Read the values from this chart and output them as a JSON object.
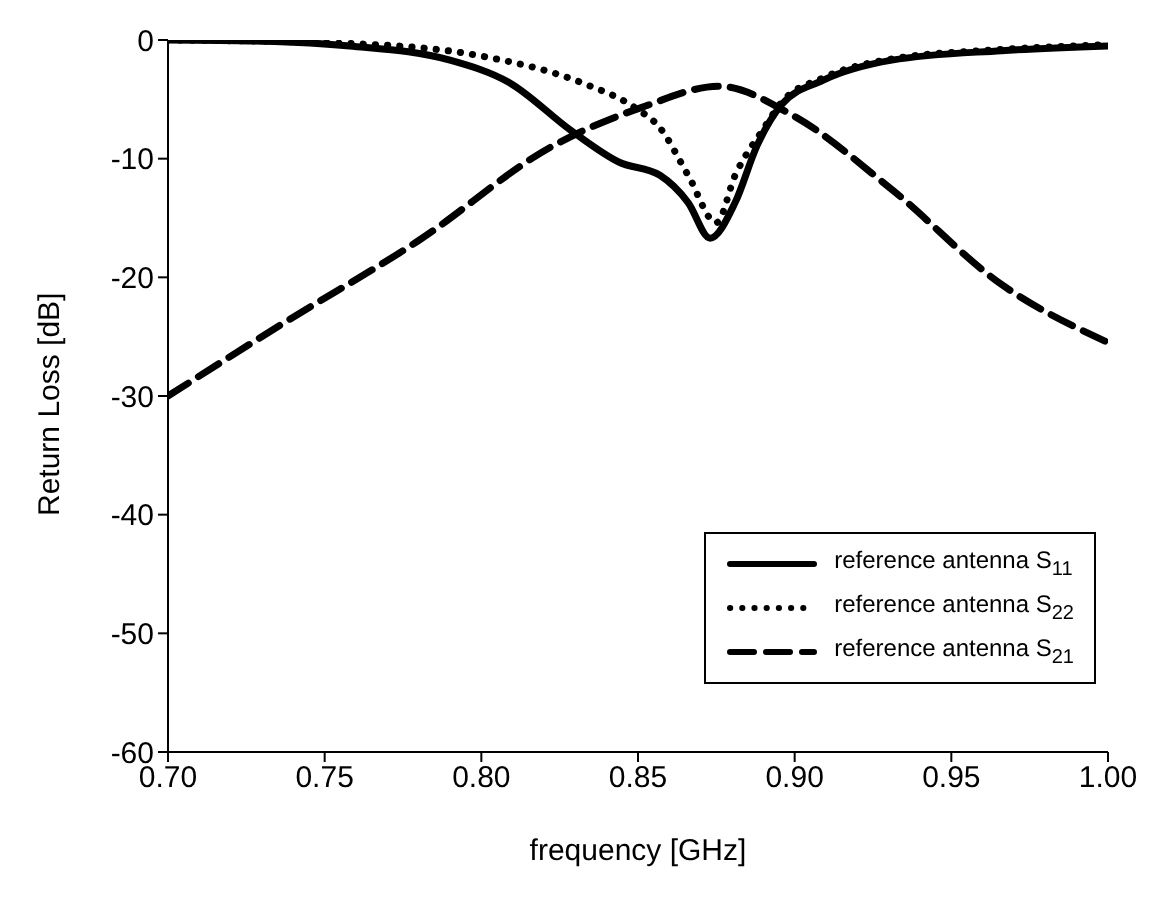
{
  "chart_data": {
    "type": "line",
    "xlabel": "frequency [GHz]",
    "ylabel": "Return Loss [dB]",
    "xlim": [
      0.7,
      1.0
    ],
    "xticks": [
      {
        "value": 0.7,
        "label": "0.70"
      },
      {
        "value": 0.75,
        "label": "0.75"
      },
      {
        "value": 0.8,
        "label": "0.80"
      },
      {
        "value": 0.85,
        "label": "0.85"
      },
      {
        "value": 0.9,
        "label": "0.90"
      },
      {
        "value": 0.95,
        "label": "0.95"
      },
      {
        "value": 1.0,
        "label": "1.00"
      }
    ],
    "ylim": [
      -60,
      0
    ],
    "yticks": [
      -60,
      -50,
      -40,
      -30,
      -20,
      -10,
      0
    ],
    "grid": false,
    "legend": "bottom right",
    "marker": "none",
    "series": [
      {
        "name": "reference  antenna S$_{11}$",
        "color": "#000000",
        "line_style": "solid",
        "x": [
          0.7,
          0.73,
          0.758,
          0.79,
          0.809,
          0.829,
          0.844,
          0.857,
          0.866,
          0.873,
          0.881,
          0.888,
          0.896,
          0.909,
          0.931,
          0.966,
          1.0
        ],
        "values": [
          0,
          -0.1,
          -0.5,
          -1.7,
          -3.6,
          -7.7,
          -10.3,
          -11.4,
          -13.7,
          -16.7,
          -13.7,
          -8.9,
          -5.4,
          -3.4,
          -1.7,
          -0.9,
          -0.5
        ]
      },
      {
        "name": "reference  antenna S$_{22}$",
        "color": "#000000",
        "line_style": "dotted",
        "x": [
          0.7,
          0.758,
          0.801,
          0.833,
          0.849,
          0.857,
          0.866,
          0.875,
          0.881,
          0.89,
          0.896,
          0.909,
          0.931,
          0.966,
          1.0
        ],
        "values": [
          0,
          -0.3,
          -1.4,
          -3.7,
          -5.7,
          -7.4,
          -11.4,
          -15.4,
          -11.4,
          -7.5,
          -5.2,
          -3.2,
          -1.6,
          -0.8,
          -0.4
        ]
      },
      {
        "name": "reference  antenna S$_{21}$",
        "color": "#000000",
        "line_style": "dashed",
        "x": [
          0.7,
          0.736,
          0.78,
          0.823,
          0.851,
          0.876,
          0.899,
          0.931,
          0.966,
          1.0
        ],
        "values": [
          -30,
          -24,
          -16.9,
          -8.9,
          -5.7,
          -3.9,
          -6.3,
          -12.6,
          -20.6,
          -25.5
        ]
      }
    ]
  }
}
